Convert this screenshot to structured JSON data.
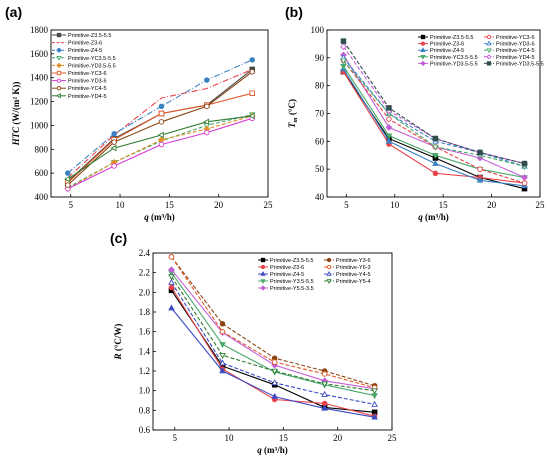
{
  "panels": [
    {
      "label": "(a)",
      "xlabel_main": "q",
      "xlabel_unit": " (m³/h)",
      "ylabel_main": "HTC",
      "ylabel_unit": " (W/(m² K))",
      "xlim": [
        3,
        25
      ],
      "ylim": [
        400,
        1800
      ],
      "xticks": [
        5,
        10,
        15,
        20,
        25
      ],
      "yticks": [
        400,
        600,
        800,
        1000,
        1200,
        1400,
        1600,
        1800
      ],
      "legend_cols": 1,
      "series": [
        {
          "name": "Primitive-Z3.5-5.5",
          "color": "#4a4a4a",
          "dash": "",
          "marker": "square",
          "fill": true,
          "x": [
            4.7,
            9.4,
            14.2,
            18.8,
            23.4
          ],
          "y": [
            530,
            890,
            1100,
            1170,
            1470
          ]
        },
        {
          "name": "Primitive-Z3-6",
          "color": "#e8434b",
          "dash": "6 2 1 2",
          "marker": "none",
          "fill": false,
          "x": [
            4.7,
            9.4,
            14.2,
            18.8,
            23.4
          ],
          "y": [
            560,
            920,
            1230,
            1310,
            1470
          ]
        },
        {
          "name": "Primitive-Z4-5",
          "color": "#3b82c4",
          "dash": "6 2 1 2",
          "marker": "circle",
          "fill": true,
          "x": [
            4.7,
            9.4,
            14.2,
            18.8,
            23.4
          ],
          "y": [
            600,
            930,
            1160,
            1380,
            1550
          ]
        },
        {
          "name": "Primitive-YC3.5-5.5",
          "color": "#4aa96c",
          "dash": "4 2",
          "marker": "down-triangle",
          "fill": false,
          "x": [
            4.7,
            9.4,
            14.2,
            18.8,
            23.4
          ],
          "y": [
            480,
            690,
            870,
            1000,
            1090
          ]
        },
        {
          "name": "Primitive-YD3.5-5.5",
          "color": "#e0922a",
          "dash": "4 2",
          "marker": "diamond",
          "fill": true,
          "x": [
            4.7,
            9.4,
            14.2,
            18.8,
            23.4
          ],
          "y": [
            470,
            690,
            880,
            970,
            1080
          ]
        },
        {
          "name": "Primitive-YC3-6",
          "color": "#e05a2a",
          "dash": "",
          "marker": "square",
          "fill": false,
          "x": [
            4.7,
            9.4,
            14.2,
            18.8,
            23.4
          ],
          "y": [
            520,
            880,
            1100,
            1170,
            1270
          ]
        },
        {
          "name": "Primitive-YD3-6",
          "color": "#d63bd6",
          "dash": "",
          "marker": "circle",
          "fill": false,
          "x": [
            4.7,
            9.4,
            14.2,
            18.8,
            23.4
          ],
          "y": [
            470,
            660,
            840,
            940,
            1060
          ]
        },
        {
          "name": "Primitive-YC4-5",
          "color": "#8b4513",
          "dash": "",
          "marker": "circle",
          "fill": false,
          "x": [
            4.7,
            9.4,
            14.2,
            18.8,
            23.4
          ],
          "y": [
            500,
            860,
            1030,
            1160,
            1450
          ]
        },
        {
          "name": "Primitive-YD4-5",
          "color": "#2e7d32",
          "dash": "",
          "marker": "left-triangle",
          "fill": false,
          "x": [
            4.7,
            9.4,
            14.2,
            18.8,
            23.4
          ],
          "y": [
            550,
            810,
            920,
            1030,
            1080
          ]
        }
      ]
    },
    {
      "label": "(b)",
      "xlabel_main": "q",
      "xlabel_unit": " (m³/h)",
      "ylabel_main": "T",
      "ylabel_sub": "m",
      "ylabel_unit": " (°C)",
      "xlim": [
        3,
        25
      ],
      "ylim": [
        40,
        100
      ],
      "xticks": [
        5,
        10,
        15,
        20,
        25
      ],
      "yticks": [
        40,
        50,
        60,
        70,
        80,
        90,
        100
      ],
      "legend_cols": 2,
      "series": [
        {
          "name": "Primitive-Z3.5-5.5",
          "color": "#000000",
          "dash": "",
          "marker": "square",
          "fill": true,
          "x": [
            4.7,
            9.4,
            14.2,
            18.8,
            23.4
          ],
          "y": [
            85,
            61,
            54,
            47,
            43
          ]
        },
        {
          "name": "Primitive-Z3-6",
          "color": "#e8434b",
          "dash": "",
          "marker": "circle",
          "fill": true,
          "x": [
            4.7,
            9.4,
            14.2,
            18.8,
            23.4
          ],
          "y": [
            85,
            59,
            48.5,
            47,
            45
          ]
        },
        {
          "name": "Primitive-Z4-5",
          "color": "#3b82c4",
          "dash": "",
          "marker": "up-triangle",
          "fill": true,
          "x": [
            4.7,
            9.4,
            14.2,
            18.8,
            23.4
          ],
          "y": [
            86,
            60,
            52,
            46,
            44
          ]
        },
        {
          "name": "Primitive-YC3.5-5.5",
          "color": "#4aa96c",
          "dash": "",
          "marker": "down-triangle",
          "fill": true,
          "x": [
            4.7,
            9.4,
            14.2,
            18.8,
            23.4
          ],
          "y": [
            87,
            62,
            55,
            50,
            47
          ]
        },
        {
          "name": "Primitive-YD3.5-5.5",
          "color": "#c45fd6",
          "dash": "",
          "marker": "diamond",
          "fill": true,
          "x": [
            4.7,
            9.4,
            14.2,
            18.8,
            23.4
          ],
          "y": [
            91,
            65,
            58,
            54,
            47
          ]
        },
        {
          "name": "Primitive-YC3-6",
          "color": "#e8434b",
          "dash": "4 2",
          "marker": "circle",
          "fill": false,
          "x": [
            4.7,
            9.4,
            14.2,
            18.8,
            23.4
          ],
          "y": [
            89,
            68,
            58,
            50,
            45
          ]
        },
        {
          "name": "Primitive-YD3-6",
          "color": "#3b82c4",
          "dash": "4 2",
          "marker": "up-triangle",
          "fill": false,
          "x": [
            4.7,
            9.4,
            14.2,
            18.8,
            23.4
          ],
          "y": [
            90,
            70,
            60,
            56,
            51
          ]
        },
        {
          "name": "Primitive-YC4-5",
          "color": "#4aa96c",
          "dash": "4 2",
          "marker": "down-triangle",
          "fill": false,
          "x": [
            4.7,
            9.4,
            14.2,
            18.8,
            23.4
          ],
          "y": [
            89,
            70,
            58,
            55,
            51
          ]
        },
        {
          "name": "Primitive-YD4-5",
          "color": "#c45fd6",
          "dash": "4 2",
          "marker": "diamond",
          "fill": false,
          "x": [
            4.7,
            9.4,
            14.2,
            18.8,
            23.4
          ],
          "y": [
            94,
            71,
            61,
            56,
            52
          ]
        },
        {
          "name": "Primitive-YD3.5-5.5",
          "color": "#2f4f4f",
          "dash": "4 2",
          "marker": "square",
          "fill": true,
          "x": [
            4.7,
            9.4,
            14.2,
            18.8,
            23.4
          ],
          "y": [
            96,
            72,
            61,
            56,
            52
          ]
        }
      ]
    },
    {
      "label": "(c)",
      "xlabel_main": "q",
      "xlabel_unit": " (m³/h)",
      "ylabel_main": "R",
      "ylabel_unit": " (°C/W)",
      "xlim": [
        3,
        25
      ],
      "ylim": [
        0.6,
        2.4
      ],
      "xticks": [
        5,
        10,
        15,
        20,
        25
      ],
      "yticks": [
        0.6,
        0.8,
        1.0,
        1.2,
        1.4,
        1.6,
        1.8,
        2.0,
        2.2,
        2.4
      ],
      "legend_cols": 2,
      "series": [
        {
          "name": "Primitive-Z3.5-5.5",
          "color": "#000000",
          "dash": "",
          "marker": "square",
          "fill": true,
          "x": [
            4.7,
            9.4,
            14.2,
            18.8,
            23.4
          ],
          "y": [
            2.02,
            1.25,
            1.06,
            0.83,
            0.78
          ]
        },
        {
          "name": "Primitive-Z3-6",
          "color": "#e8434b",
          "dash": "",
          "marker": "circle",
          "fill": true,
          "x": [
            4.7,
            9.4,
            14.2,
            18.8,
            23.4
          ],
          "y": [
            2.05,
            1.22,
            0.91,
            0.87,
            0.74
          ]
        },
        {
          "name": "Primitive-Z4-5",
          "color": "#3b4bc4",
          "dash": "",
          "marker": "up-triangle",
          "fill": true,
          "x": [
            4.7,
            9.4,
            14.2,
            18.8,
            23.4
          ],
          "y": [
            1.84,
            1.2,
            0.94,
            0.82,
            0.73
          ]
        },
        {
          "name": "Primitive-Y3.5-5.5",
          "color": "#4aa96c",
          "dash": "",
          "marker": "down-triangle",
          "fill": true,
          "x": [
            4.7,
            9.4,
            14.2,
            18.8,
            23.4
          ],
          "y": [
            2.2,
            1.47,
            1.19,
            1.06,
            0.95
          ]
        },
        {
          "name": "Primitive-Y5.5-3.5",
          "color": "#c45fd6",
          "dash": "",
          "marker": "diamond",
          "fill": true,
          "x": [
            4.7,
            9.4,
            14.2,
            18.8,
            23.4
          ],
          "y": [
            2.23,
            1.59,
            1.26,
            1.1,
            1.02
          ]
        },
        {
          "name": "Primitive-Y3-6",
          "color": "#8b4513",
          "dash": "4 2",
          "marker": "circle",
          "fill": true,
          "x": [
            4.7,
            9.4,
            14.2,
            18.8,
            23.4
          ],
          "y": [
            2.36,
            1.68,
            1.33,
            1.2,
            1.05
          ]
        },
        {
          "name": "Primitive-Y6-3",
          "color": "#e05a2a",
          "dash": "4 2",
          "marker": "circle",
          "fill": false,
          "x": [
            4.7,
            9.4,
            14.2,
            18.8,
            23.4
          ],
          "y": [
            2.36,
            1.6,
            1.29,
            1.17,
            1.03
          ]
        },
        {
          "name": "Primitive-Y4-5",
          "color": "#3b4bc4",
          "dash": "4 2",
          "marker": "up-triangle",
          "fill": false,
          "x": [
            4.7,
            9.4,
            14.2,
            18.8,
            23.4
          ],
          "y": [
            2.1,
            1.28,
            1.08,
            0.96,
            0.86
          ]
        },
        {
          "name": "Primitive-Y5-4",
          "color": "#2e7d32",
          "dash": "4 2",
          "marker": "down-triangle",
          "fill": false,
          "x": [
            4.7,
            9.4,
            14.2,
            18.8,
            23.4
          ],
          "y": [
            2.16,
            1.36,
            1.2,
            1.07,
            1.0
          ]
        }
      ]
    }
  ]
}
